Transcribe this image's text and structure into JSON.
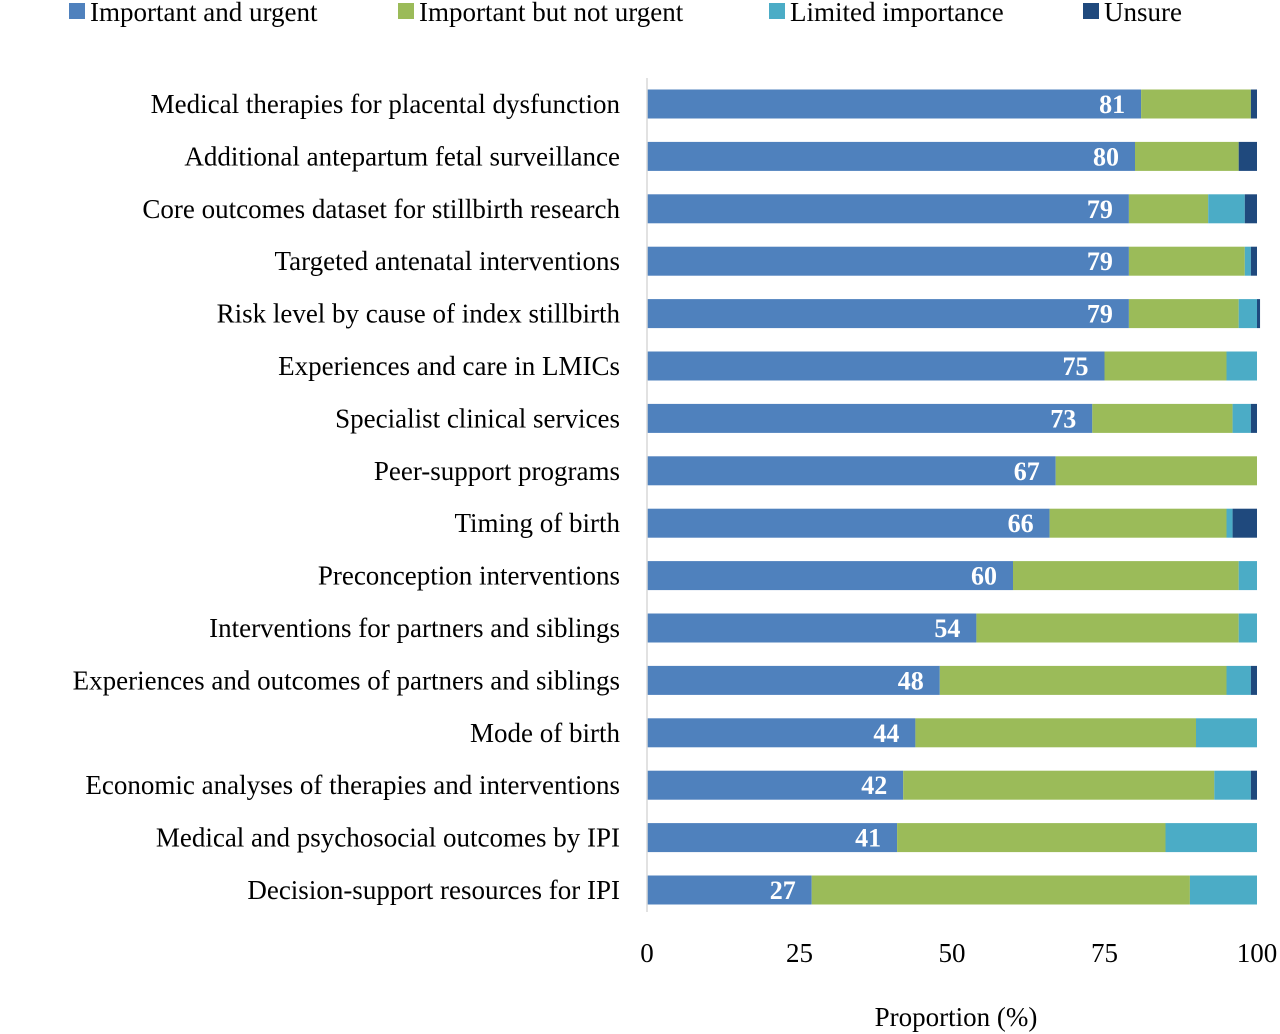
{
  "chart_data": {
    "type": "bar",
    "orientation": "horizontal",
    "stacked": true,
    "title": "",
    "xlabel": "Proportion (%)",
    "ylabel": "",
    "xlim": [
      0,
      100
    ],
    "xticks": [
      0,
      25,
      50,
      75,
      100
    ],
    "grid": false,
    "legend_position": "top",
    "categories": [
      "Medical therapies for placental dysfunction",
      "Additional antepartum fetal surveillance",
      "Core outcomes dataset for stillbirth research",
      "Targeted antenatal interventions",
      "Risk level by cause of index stillbirth",
      "Experiences and care in LMICs",
      "Specialist clinical services",
      "Peer-support programs",
      "Timing of birth",
      "Preconception interventions",
      "Interventions for partners and siblings",
      "Experiences and outcomes of partners and siblings",
      "Mode of birth",
      "Economic analyses of therapies and interventions",
      "Medical and psychosocial outcomes by IPI",
      "Decision-support resources for IPI"
    ],
    "series": [
      {
        "name": "Important and urgent",
        "color": "#4f81bd",
        "values": [
          81,
          80,
          79,
          79,
          79,
          75,
          73,
          67,
          66,
          60,
          54,
          48,
          44,
          42,
          41,
          27
        ],
        "show_labels": true
      },
      {
        "name": "Important but not urgent",
        "color": "#9bbb59",
        "values": [
          18,
          17,
          13,
          19,
          18,
          20,
          23,
          33,
          29,
          37,
          43,
          47,
          46,
          51,
          44,
          62
        ],
        "show_labels": false
      },
      {
        "name": "Limited importance",
        "color": "#4bacc6",
        "values": [
          0,
          0,
          6,
          1,
          3,
          5,
          3,
          0,
          1,
          3,
          3,
          4,
          10,
          6,
          15,
          11
        ],
        "show_labels": false
      },
      {
        "name": "Unsure",
        "color": "#1f497d",
        "values": [
          1,
          3,
          2,
          1,
          0.5,
          0,
          1,
          0,
          4,
          0,
          0,
          1,
          0,
          1,
          0,
          0
        ],
        "show_labels": false
      }
    ]
  }
}
